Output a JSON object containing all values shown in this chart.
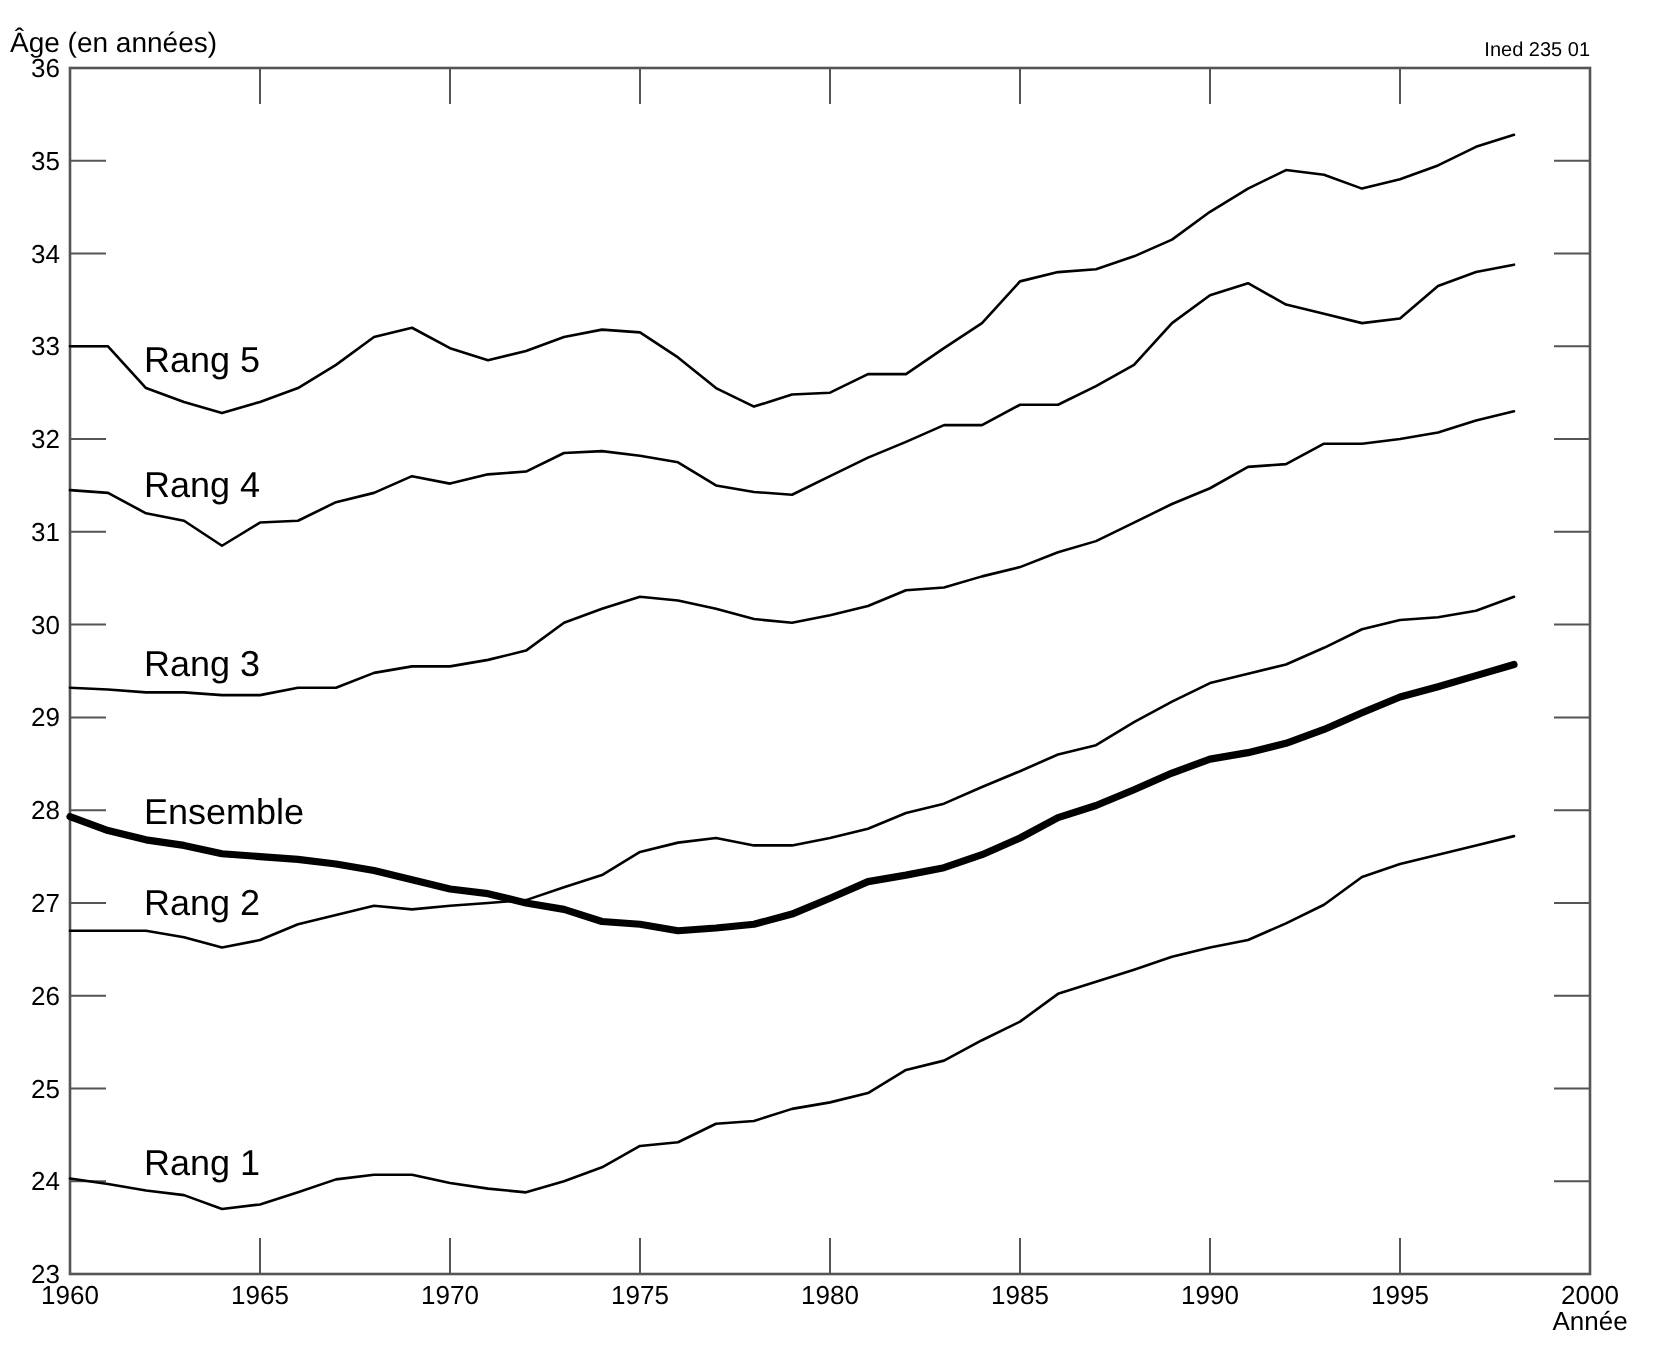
{
  "chart_data": {
    "type": "line",
    "ylabel": "Âge (en années)",
    "xlabel": "Année",
    "annotations": [
      "Ined 235 01"
    ],
    "x": [
      1960,
      1961,
      1962,
      1963,
      1964,
      1965,
      1966,
      1967,
      1968,
      1969,
      1970,
      1971,
      1972,
      1973,
      1974,
      1975,
      1976,
      1977,
      1978,
      1979,
      1980,
      1981,
      1982,
      1983,
      1984,
      1985,
      1986,
      1987,
      1988,
      1989,
      1990,
      1991,
      1992,
      1993,
      1994,
      1995,
      1996,
      1997,
      1998
    ],
    "xlim": [
      1960,
      2000
    ],
    "xticks": [
      1960,
      1965,
      1970,
      1975,
      1980,
      1985,
      1990,
      1995,
      2000
    ],
    "ylim": [
      23,
      36
    ],
    "yticks": [
      23,
      24,
      25,
      26,
      27,
      28,
      29,
      30,
      31,
      32,
      33,
      34,
      35,
      36
    ],
    "grid": false,
    "marker": "none",
    "line_style": "solid",
    "series": [
      {
        "name": "Rang 5",
        "color": "#000000",
        "values": [
          33.0,
          33.0,
          32.55,
          32.4,
          32.28,
          32.4,
          32.55,
          32.8,
          33.1,
          33.2,
          32.98,
          32.85,
          32.95,
          33.1,
          33.18,
          33.15,
          32.88,
          32.55,
          32.35,
          32.48,
          32.5,
          32.7,
          32.7,
          32.98,
          33.25,
          33.7,
          33.8,
          33.83,
          33.97,
          34.15,
          34.45,
          34.7,
          34.9,
          34.85,
          34.7,
          34.8,
          34.95,
          35.15,
          35.28
        ]
      },
      {
        "name": "Rang 4",
        "color": "#000000",
        "values": [
          31.45,
          31.42,
          31.2,
          31.12,
          30.85,
          31.1,
          31.12,
          31.32,
          31.42,
          31.6,
          31.52,
          31.62,
          31.65,
          31.85,
          31.87,
          31.82,
          31.75,
          31.5,
          31.43,
          31.4,
          31.6,
          31.8,
          31.97,
          32.15,
          32.15,
          32.37,
          32.37,
          32.57,
          32.8,
          33.25,
          33.55,
          33.68,
          33.45,
          33.35,
          33.25,
          33.3,
          33.65,
          33.8,
          33.88
        ]
      },
      {
        "name": "Rang 3",
        "color": "#000000",
        "values": [
          29.32,
          29.3,
          29.27,
          29.27,
          29.24,
          29.24,
          29.32,
          29.32,
          29.48,
          29.55,
          29.55,
          29.62,
          29.72,
          30.02,
          30.17,
          30.3,
          30.26,
          30.17,
          30.06,
          30.02,
          30.1,
          30.2,
          30.37,
          30.4,
          30.52,
          30.62,
          30.78,
          30.9,
          31.1,
          31.3,
          31.47,
          31.7,
          31.73,
          31.95,
          31.95,
          32.0,
          32.07,
          32.2,
          32.3
        ]
      },
      {
        "name": "Ensemble",
        "color": "#000000",
        "values": [
          27.93,
          27.78,
          27.68,
          27.62,
          27.53,
          27.5,
          27.47,
          27.42,
          27.35,
          27.25,
          27.15,
          27.1,
          27.0,
          26.93,
          26.8,
          26.77,
          26.7,
          26.73,
          26.77,
          26.88,
          27.05,
          27.23,
          27.3,
          27.38,
          27.52,
          27.7,
          27.92,
          28.05,
          28.22,
          28.4,
          28.55,
          28.62,
          28.72,
          28.87,
          29.05,
          29.22,
          29.33,
          29.45,
          29.57
        ]
      },
      {
        "name": "Rang 2",
        "color": "#000000",
        "values": [
          26.7,
          26.7,
          26.7,
          26.63,
          26.52,
          26.6,
          26.77,
          26.87,
          26.97,
          26.93,
          26.97,
          27.0,
          27.03,
          27.17,
          27.3,
          27.55,
          27.65,
          27.7,
          27.62,
          27.62,
          27.7,
          27.8,
          27.97,
          28.07,
          28.25,
          28.42,
          28.6,
          28.7,
          28.95,
          29.17,
          29.37,
          29.47,
          29.57,
          29.75,
          29.95,
          30.05,
          30.08,
          30.15,
          30.3
        ]
      },
      {
        "name": "Rang 1",
        "color": "#000000",
        "values": [
          24.03,
          23.97,
          23.9,
          23.85,
          23.7,
          23.75,
          23.88,
          24.02,
          24.07,
          24.07,
          23.98,
          23.92,
          23.88,
          24.0,
          24.15,
          24.38,
          24.42,
          24.62,
          24.65,
          24.78,
          24.85,
          24.95,
          25.2,
          25.3,
          25.52,
          25.72,
          26.02,
          26.15,
          26.28,
          26.42,
          26.52,
          26.6,
          26.78,
          26.98,
          27.28,
          27.42,
          27.52,
          27.62,
          27.72
        ]
      }
    ]
  }
}
